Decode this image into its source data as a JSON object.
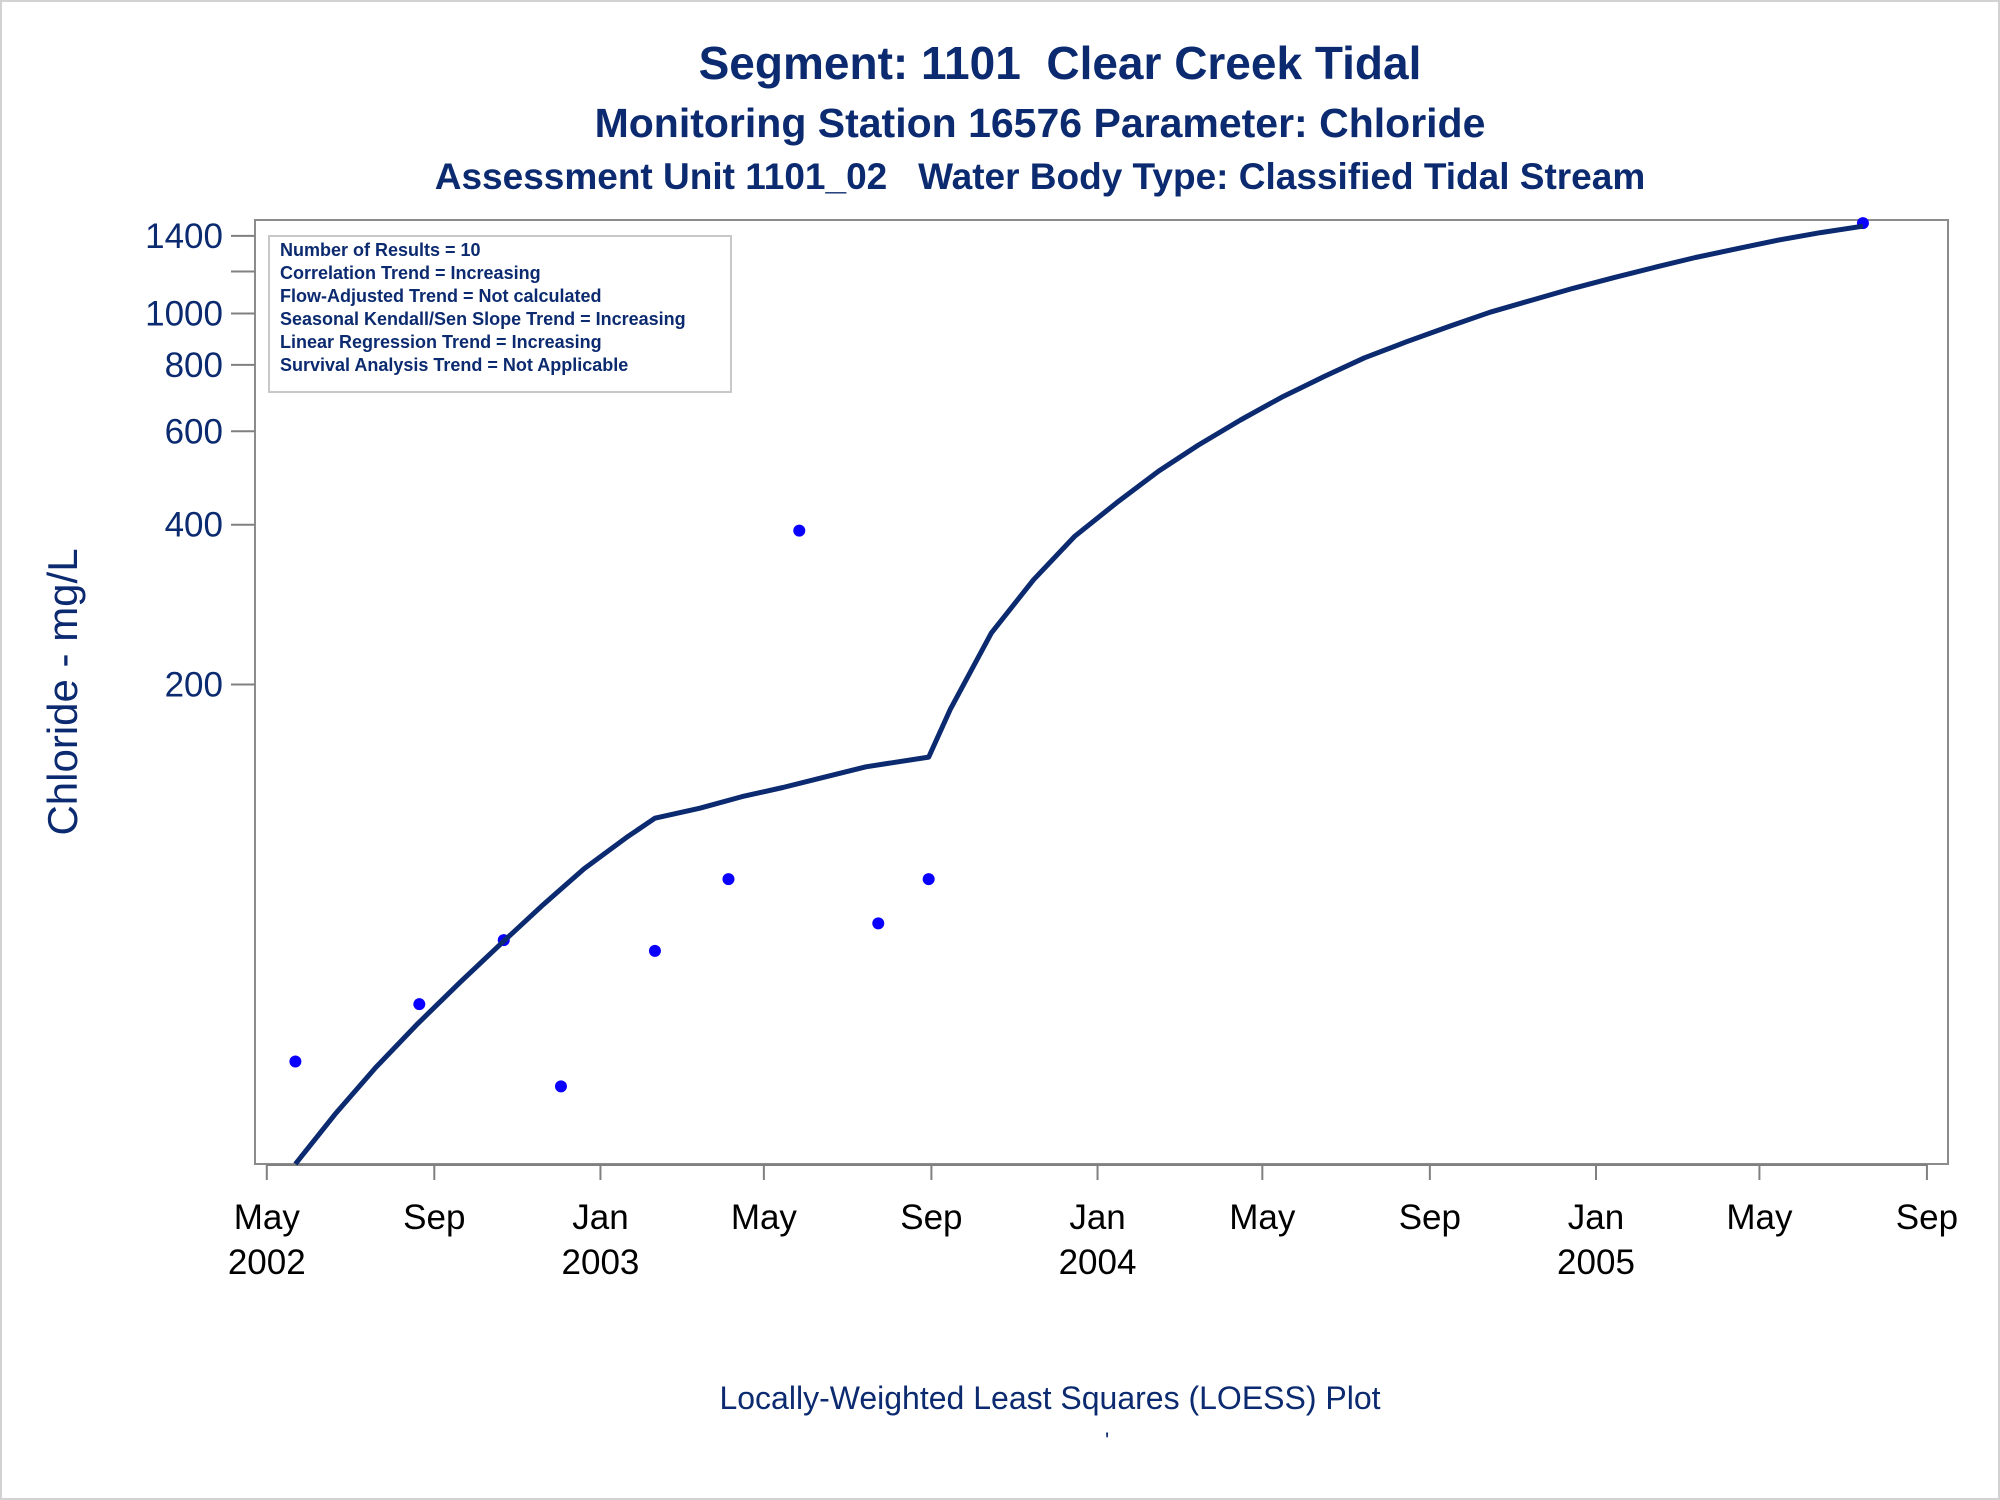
{
  "titles": {
    "line1": "Segment: 1101  Clear Creek Tidal",
    "line2": "Monitoring Station 16576 Parameter: Chloride",
    "line3": "Assessment Unit 1101_02   Water Body Type: Classified Tidal Stream"
  },
  "footnote": "Locally-Weighted Least Squares (LOESS) Plot",
  "footnote_mark": "'",
  "stats_box": [
    "Number of Results = 10",
    "Correlation Trend = Increasing",
    "Flow-Adjusted Trend = Not calculated",
    "Seasonal Kendall/Sen Slope Trend = Increasing",
    "Linear Regression Trend = Increasing",
    "Survival Analysis Trend = Not Applicable"
  ],
  "colors": {
    "title": "#0b2a6f",
    "loess_line": "#0b2a6f",
    "points": "#0a00ff",
    "axis": "#808080",
    "stats_border": "#c8c8c8"
  },
  "chart_data": {
    "type": "scatter",
    "ylabel": "Chloride - mg/L",
    "xlabel": "",
    "y_scale": "log",
    "ylim": [
      25,
      1500
    ],
    "xlim": [
      "2002-04-15",
      "2005-09-15"
    ],
    "y_ticks": [
      {
        "value": 200,
        "label": "200"
      },
      {
        "value": 400,
        "label": "400"
      },
      {
        "value": 600,
        "label": "600"
      },
      {
        "value": 800,
        "label": "800"
      },
      {
        "value": 1000,
        "label": "1000"
      },
      {
        "value": 1200,
        "label": ""
      },
      {
        "value": 1400,
        "label": "1400"
      }
    ],
    "x_ticks": [
      {
        "date": "2002-05-01",
        "label": [
          "May",
          "2002"
        ]
      },
      {
        "date": "2002-09-01",
        "label": [
          "Sep",
          ""
        ]
      },
      {
        "date": "2003-01-01",
        "label": [
          "Jan",
          "2003"
        ]
      },
      {
        "date": "2003-05-01",
        "label": [
          "May",
          ""
        ]
      },
      {
        "date": "2003-09-01",
        "label": [
          "Sep",
          ""
        ]
      },
      {
        "date": "2004-01-01",
        "label": [
          "Jan",
          "2004"
        ]
      },
      {
        "date": "2004-05-01",
        "label": [
          "May",
          ""
        ]
      },
      {
        "date": "2004-09-01",
        "label": [
          "Sep",
          ""
        ]
      },
      {
        "date": "2005-01-01",
        "label": [
          "Jan",
          "2005"
        ]
      },
      {
        "date": "2005-05-01",
        "label": [
          "May",
          ""
        ]
      },
      {
        "date": "2005-09-01",
        "label": [
          "Sep",
          ""
        ]
      }
    ],
    "series": [
      {
        "name": "",
        "kind": "points",
        "points": [
          {
            "x": "2002-05-22",
            "y": 39
          },
          {
            "x": "2002-08-21",
            "y": 50
          },
          {
            "x": "2002-10-22",
            "y": 66
          },
          {
            "x": "2002-12-03",
            "y": 35
          },
          {
            "x": "2003-02-10",
            "y": 63
          },
          {
            "x": "2003-04-05",
            "y": 86
          },
          {
            "x": "2003-05-27",
            "y": 390
          },
          {
            "x": "2003-07-24",
            "y": 71
          },
          {
            "x": "2003-08-30",
            "y": 86
          },
          {
            "x": "2005-07-16",
            "y": 1480
          }
        ]
      },
      {
        "name": "",
        "kind": "loess",
        "points": [
          {
            "x": "2002-05-22",
            "y": 25
          },
          {
            "x": "2002-06-20",
            "y": 31
          },
          {
            "x": "2002-07-20",
            "y": 38
          },
          {
            "x": "2002-08-20",
            "y": 46
          },
          {
            "x": "2002-09-20",
            "y": 55
          },
          {
            "x": "2002-10-20",
            "y": 65
          },
          {
            "x": "2002-11-20",
            "y": 77
          },
          {
            "x": "2002-12-20",
            "y": 90
          },
          {
            "x": "2003-01-20",
            "y": 103
          },
          {
            "x": "2003-02-10",
            "y": 112
          },
          {
            "x": "2003-03-15",
            "y": 117
          },
          {
            "x": "2003-04-15",
            "y": 123
          },
          {
            "x": "2003-05-15",
            "y": 128
          },
          {
            "x": "2003-06-15",
            "y": 134
          },
          {
            "x": "2003-07-15",
            "y": 140
          },
          {
            "x": "2003-08-30",
            "y": 146
          },
          {
            "x": "2003-09-15",
            "y": 180
          },
          {
            "x": "2003-10-15",
            "y": 250
          },
          {
            "x": "2003-11-15",
            "y": 315
          },
          {
            "x": "2003-12-15",
            "y": 380
          },
          {
            "x": "2004-01-15",
            "y": 440
          },
          {
            "x": "2004-02-15",
            "y": 505
          },
          {
            "x": "2004-03-15",
            "y": 565
          },
          {
            "x": "2004-04-15",
            "y": 630
          },
          {
            "x": "2004-05-15",
            "y": 695
          },
          {
            "x": "2004-06-15",
            "y": 760
          },
          {
            "x": "2004-07-15",
            "y": 825
          },
          {
            "x": "2004-08-15",
            "y": 885
          },
          {
            "x": "2004-09-15",
            "y": 945
          },
          {
            "x": "2004-10-15",
            "y": 1005
          },
          {
            "x": "2004-11-15",
            "y": 1060
          },
          {
            "x": "2004-12-15",
            "y": 1115
          },
          {
            "x": "2005-01-15",
            "y": 1170
          },
          {
            "x": "2005-02-15",
            "y": 1225
          },
          {
            "x": "2005-03-15",
            "y": 1275
          },
          {
            "x": "2005-04-15",
            "y": 1325
          },
          {
            "x": "2005-05-15",
            "y": 1375
          },
          {
            "x": "2005-06-15",
            "y": 1420
          },
          {
            "x": "2005-07-16",
            "y": 1460
          }
        ]
      }
    ]
  }
}
